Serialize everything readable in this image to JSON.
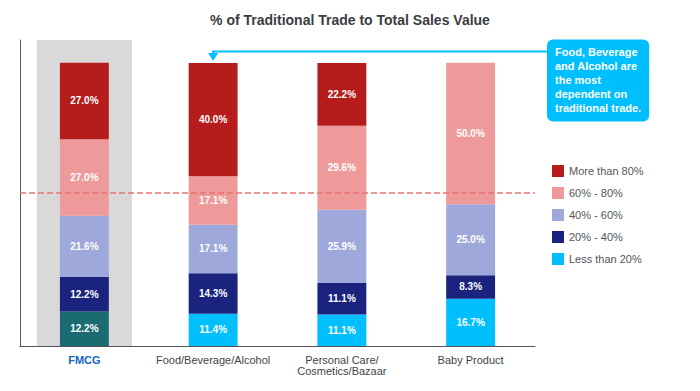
{
  "chart_data": {
    "type": "bar",
    "title": "% of Traditional Trade to Total Sales Value",
    "categories": [
      "FMCG",
      "Food/Beverage/Alcohol",
      "Personal Care/\nCosmetics/Bazaar",
      "Baby Product"
    ],
    "series": [
      {
        "name": "Less than 20%",
        "color": "#00BFFF",
        "colors": [
          "#1a6b72",
          "#00BFFF",
          "#00BFFF",
          "#00BFFF"
        ],
        "values": [
          12.2,
          11.4,
          11.1,
          16.7
        ],
        "value_labels": [
          "12.2%",
          "11.4%",
          "11.1%",
          "16.7%"
        ]
      },
      {
        "name": "20% - 40%",
        "color": "#1a237e",
        "values": [
          12.2,
          14.3,
          11.1,
          8.3
        ],
        "value_labels": [
          "12.2%",
          "14.3%",
          "11.1%",
          "8.3%"
        ]
      },
      {
        "name": "40% - 60%",
        "color": "#9fa8da",
        "values": [
          21.6,
          17.1,
          25.9,
          25.0
        ],
        "value_labels": [
          "21.6%",
          "17.1%",
          "25.9%",
          "25.0%"
        ]
      },
      {
        "name": "60% - 80%",
        "color": "#ef9a9a",
        "values": [
          27.0,
          17.1,
          29.6,
          50.0
        ],
        "value_labels": [
          "27.0%",
          "17.1%",
          "29.6%",
          "50.0%"
        ]
      },
      {
        "name": "More than 80%",
        "color": "#b71c1c",
        "values": [
          27.0,
          40.0,
          22.2,
          0.0
        ],
        "value_labels": [
          "27.0%",
          "40.0%",
          "22.2%",
          null
        ]
      }
    ],
    "stacked": true,
    "data_labels": true,
    "ylim": [
      0,
      108
    ],
    "yticks": [],
    "tick_labels": "x",
    "grid": false,
    "legend": "right",
    "legend_order": [
      "More than 80%",
      "60% - 80%",
      "40% - 60%",
      "20% - 40%",
      "Less than 20%"
    ],
    "dashed_line": {
      "y": 54.0,
      "color": "#e57373",
      "line_style": "dashed"
    },
    "annotation": {
      "text": "Food, Beverage\nand Alcohol are\nthe most\ndependent on\ntraditional trade.",
      "color": "#00BFFF",
      "category": "Food/Beverage/Alcohol"
    },
    "highlight": {
      "category": "FMCG",
      "color": "#d9d9d9",
      "label_color": "#1565C0"
    }
  }
}
